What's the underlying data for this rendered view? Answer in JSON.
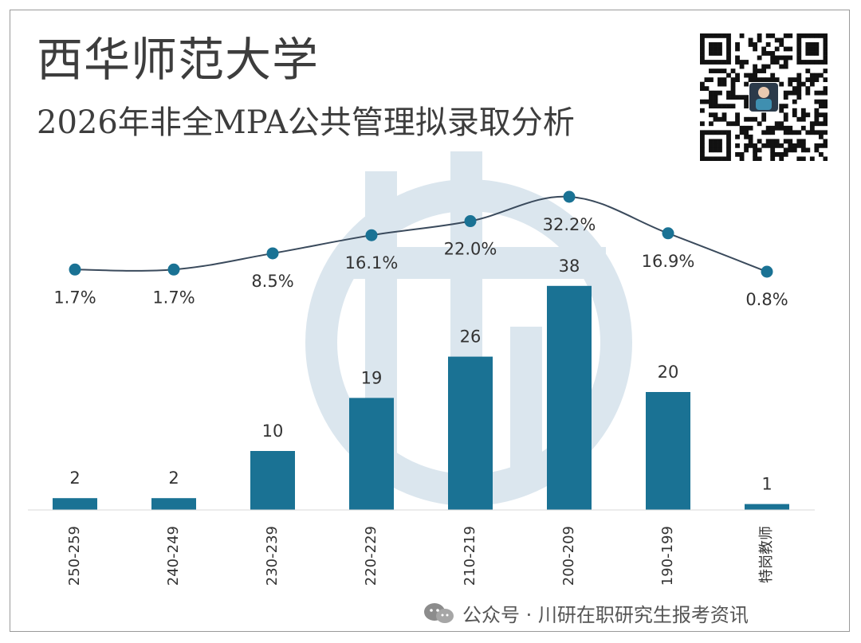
{
  "page": {
    "title": "西华师范大学",
    "subtitle": "2026年非全MPA公共管理拟录取分析",
    "watermark_text": "公众号 · 川研在职研究生报考资讯",
    "qr_icon": "qr-code-icon",
    "wechat_icon": "wechat-icon"
  },
  "colors": {
    "bar": "#1a7294",
    "line": "#3a4a5c",
    "point": "#1a7294",
    "watermark_logo": "#dbe6ee"
  },
  "chart_data": {
    "type": "bar",
    "categories": [
      "250-259",
      "240-249",
      "230-239",
      "220-229",
      "210-219",
      "200-209",
      "190-199",
      "特岗教师"
    ],
    "series": [
      {
        "type": "bar",
        "values": [
          2,
          2,
          10,
          19,
          26,
          38,
          20,
          1
        ]
      },
      {
        "type": "line",
        "values": [
          1.7,
          1.7,
          8.5,
          16.1,
          22.0,
          32.2,
          16.9,
          0.8
        ],
        "labels": [
          "1.7%",
          "1.7%",
          "8.5%",
          "16.1%",
          "22.0%",
          "32.2%",
          "16.9%",
          "0.8%"
        ]
      }
    ],
    "bar_labels": [
      "2",
      "2",
      "10",
      "19",
      "26",
      "38",
      "20",
      "1"
    ],
    "ylim_bar": [
      0,
      42
    ],
    "legend": "none",
    "grid": false
  }
}
